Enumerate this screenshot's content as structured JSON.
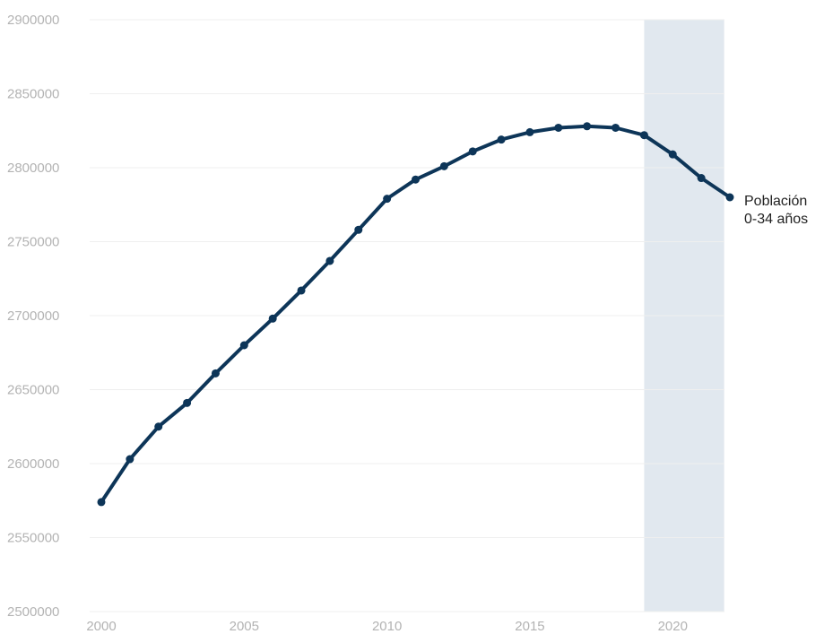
{
  "chart_data": {
    "type": "line",
    "title": "",
    "xlabel": "",
    "ylabel": "",
    "xlim": [
      2000,
      2022
    ],
    "ylim": [
      2500000,
      2900000
    ],
    "x_ticks": [
      "2000",
      "2005",
      "2010",
      "2015",
      "2020"
    ],
    "y_ticks": [
      "2500000",
      "2550000",
      "2600000",
      "2650000",
      "2700000",
      "2750000",
      "2800000",
      "2850000",
      "2900000"
    ],
    "grid": "horizontal",
    "highlight_band": {
      "x_start": 2019,
      "x_end": 2021.8
    },
    "series": [
      {
        "label_lines": [
          "Población",
          "0-34 años"
        ],
        "x": [
          2000,
          2001,
          2002,
          2003,
          2004,
          2005,
          2006,
          2007,
          2008,
          2009,
          2010,
          2011,
          2012,
          2013,
          2014,
          2015,
          2016,
          2017,
          2018,
          2019,
          2020,
          2021,
          2022
        ],
        "values": [
          2574000,
          2603000,
          2625000,
          2641000,
          2661000,
          2680000,
          2698000,
          2717000,
          2737000,
          2758000,
          2779000,
          2792000,
          2801000,
          2811000,
          2819000,
          2824000,
          2827000,
          2828000,
          2827000,
          2822000,
          2809000,
          2793000,
          2780000
        ]
      }
    ]
  },
  "colors": {
    "line": "#0d3558",
    "band": "#e1e8ef",
    "grid": "#efefef",
    "tick_text": "#b3b3b3",
    "label_text": "#222222"
  }
}
